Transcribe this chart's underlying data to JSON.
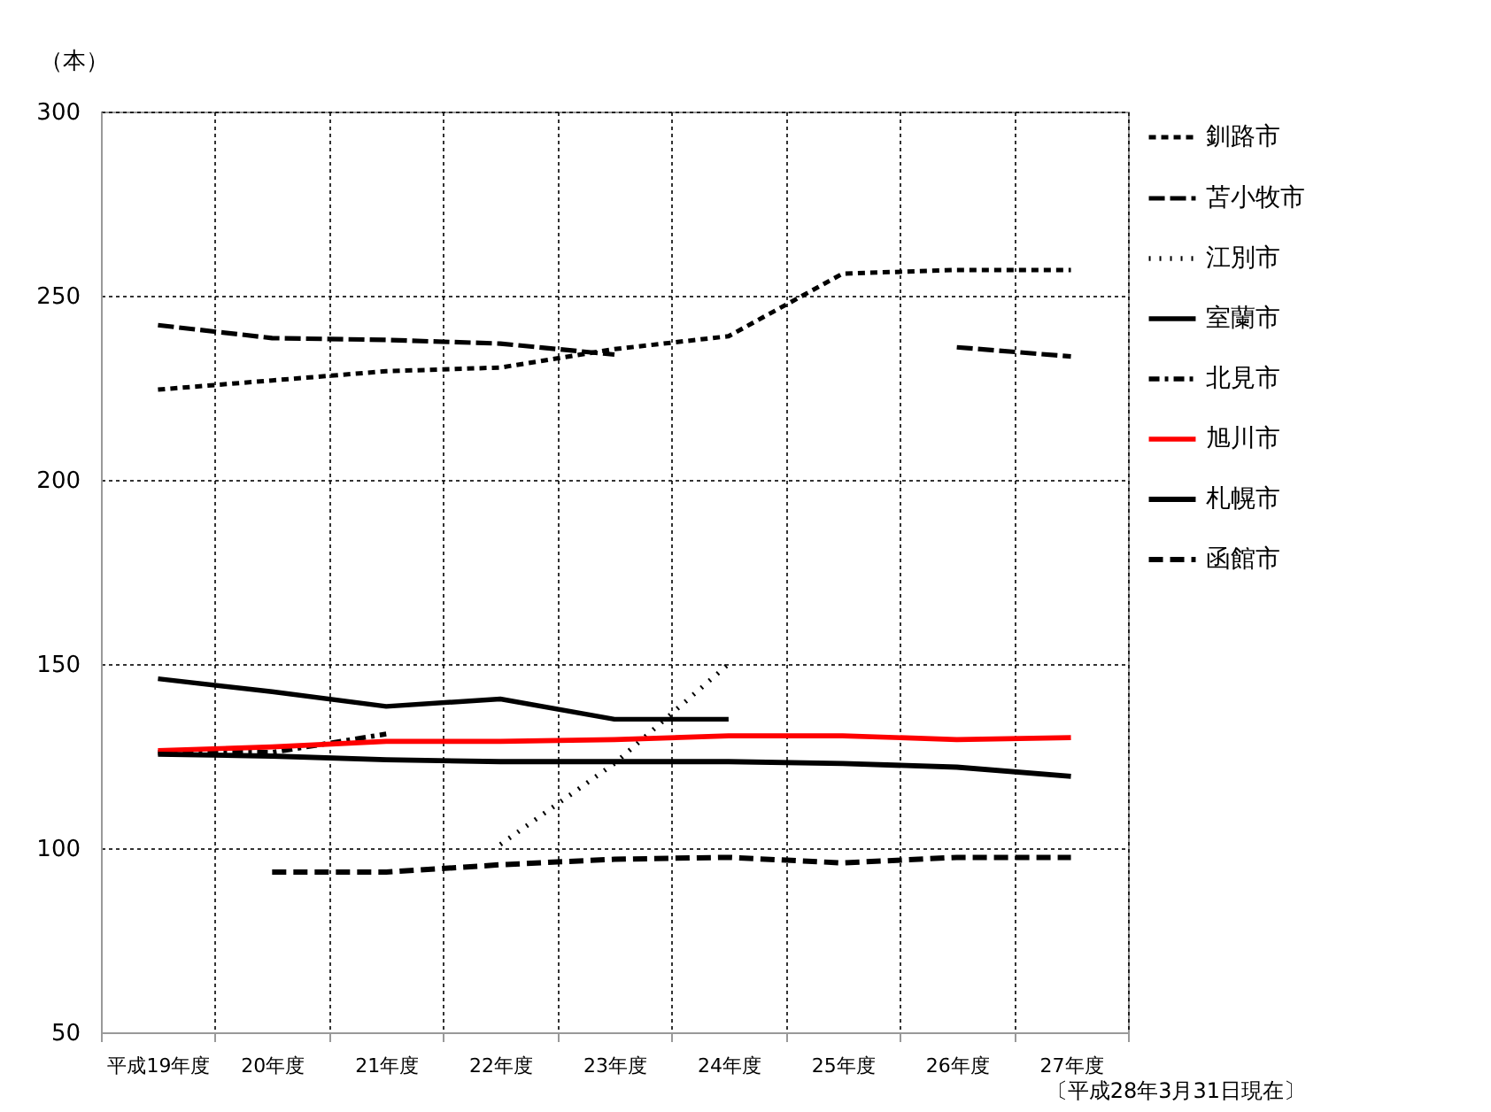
{
  "chart_data": {
    "type": "line",
    "ylabel": "（本）",
    "categories": [
      "平成19年度",
      "20年度",
      "21年度",
      "22年度",
      "23年度",
      "24年度",
      "25年度",
      "26年度",
      "27年度"
    ],
    "ylim": [
      50,
      300
    ],
    "yticks": [
      50,
      100,
      150,
      200,
      250,
      300
    ],
    "grid": true,
    "legend": "right",
    "annotations": [
      "〔平成28年3月31日現在〕"
    ],
    "series": [
      {
        "name": "釧路市",
        "color": "#000000",
        "line_style": "dashed",
        "values": [
          224.5,
          227,
          229.5,
          230.5,
          235.5,
          239,
          256,
          257,
          257
        ]
      },
      {
        "name": "苫小牧市",
        "color": "#000000",
        "line_style": "dashed",
        "values": [
          242,
          238.5,
          238,
          237,
          234,
          null,
          null,
          236,
          233.5
        ]
      },
      {
        "name": "江別市",
        "color": "#000000",
        "line_style": "dotted",
        "values": [
          null,
          null,
          null,
          101,
          123,
          150,
          null,
          null,
          null
        ]
      },
      {
        "name": "室蘭市",
        "color": "#000000",
        "line_style": "solid",
        "values": [
          146,
          142.5,
          138.5,
          140.5,
          135,
          135,
          null,
          null,
          null
        ]
      },
      {
        "name": "北見市",
        "color": "#000000",
        "line_style": "dashed",
        "values": [
          126,
          126,
          131,
          null,
          null,
          null,
          null,
          null,
          null
        ]
      },
      {
        "name": "旭川市",
        "color": "#ff0000",
        "line_style": "solid",
        "values": [
          126.5,
          127.5,
          129,
          129,
          129.5,
          130.5,
          130.5,
          129.5,
          130
        ]
      },
      {
        "name": "札幌市",
        "color": "#000000",
        "line_style": "solid",
        "values": [
          125.5,
          125,
          124,
          123.5,
          123.5,
          123.5,
          123,
          122,
          119.5
        ]
      },
      {
        "name": "函館市",
        "color": "#000000",
        "line_style": "dashed",
        "values": [
          null,
          93.5,
          93.5,
          95.5,
          97,
          97.5,
          96,
          97.5,
          97.5
        ]
      }
    ]
  }
}
